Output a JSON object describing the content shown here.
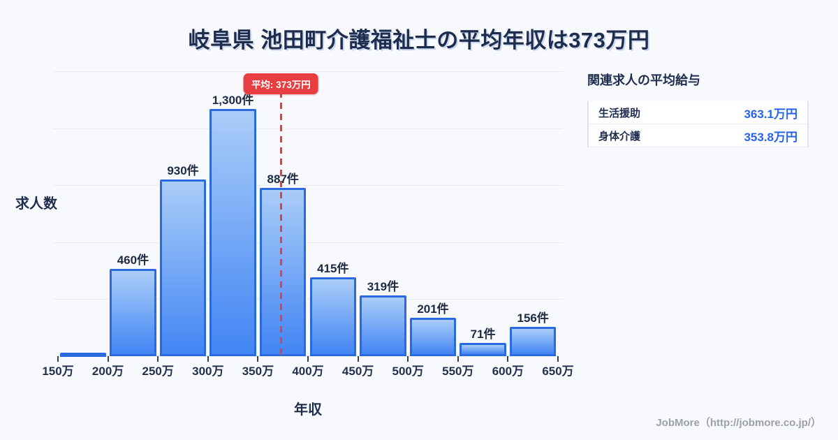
{
  "page": {
    "title": "岐阜県 池田町介護福祉士の平均年収は373万円"
  },
  "chart_data": {
    "type": "bar",
    "title": "岐阜県 池田町介護福祉士の平均年収は373万円",
    "xlabel": "年収",
    "ylabel": "求人数",
    "x_tick_labels": [
      "150万",
      "200万",
      "250万",
      "300万",
      "350万",
      "400万",
      "450万",
      "500万",
      "550万",
      "600万",
      "650万"
    ],
    "bars": [
      {
        "range": "150万-200万",
        "value": 20,
        "label": ""
      },
      {
        "range": "200万-250万",
        "value": 460,
        "label": "460件"
      },
      {
        "range": "250万-300万",
        "value": 930,
        "label": "930件"
      },
      {
        "range": "300万-350万",
        "value": 1300,
        "label": "1,300件"
      },
      {
        "range": "350万-400万",
        "value": 887,
        "label": "887件"
      },
      {
        "range": "400万-450万",
        "value": 415,
        "label": "415件"
      },
      {
        "range": "450万-500万",
        "value": 319,
        "label": "319件"
      },
      {
        "range": "500万-550万",
        "value": 201,
        "label": "201件"
      },
      {
        "range": "550万-600万",
        "value": 71,
        "label": "71件"
      },
      {
        "range": "600万-650万",
        "value": 156,
        "label": "156件"
      }
    ],
    "average": {
      "value": 373,
      "badge_label": "平均: 373万円"
    },
    "x_range_man_yen": [
      150,
      650
    ],
    "ylim": [
      0,
      1500
    ],
    "grid_step": 300,
    "grid": "horizontal-only",
    "legend": "none"
  },
  "side_panel": {
    "heading": "関連求人の平均給与",
    "rows": [
      {
        "label": "生活援助",
        "value": "363.1万円"
      },
      {
        "label": "身体介護",
        "value": "353.8万円"
      }
    ]
  },
  "footer": {
    "credit": "JobMore（http://jobmore.co.jp/）"
  },
  "colors": {
    "background": "#f7f9fc",
    "text_dark": "#1e2c4e",
    "bar_fill_top": "#aacdf8",
    "bar_fill_bottom": "#4285f4",
    "bar_border": "#2a6ae0",
    "accent_red": "#e83d41",
    "value_blue": "#2563eb",
    "grid": "#e7ebf3",
    "footer_gray": "#9ba0a8"
  }
}
